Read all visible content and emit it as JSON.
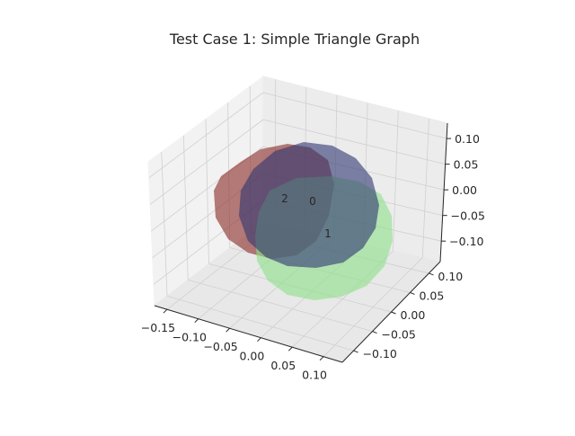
{
  "chart_data": {
    "type": "scatter",
    "title": "Test Case 1: Simple Triangle Graph",
    "projection": "3d",
    "grid": true,
    "axes": {
      "x": {
        "ticks": [
          -0.15,
          -0.1,
          -0.05,
          0.0,
          0.05,
          0.1
        ],
        "tick_labels": [
          "−0.15",
          "−0.10",
          "−0.05",
          "0.00",
          "0.05",
          "0.10"
        ]
      },
      "y": {
        "ticks": [
          -0.1,
          -0.05,
          0.0,
          0.05,
          0.1
        ],
        "tick_labels": [
          "−0.10",
          "−0.05",
          "0.00",
          "0.05",
          "0.10"
        ]
      },
      "z": {
        "ticks": [
          -0.1,
          -0.05,
          0.0,
          0.05,
          0.1
        ],
        "tick_labels": [
          "−0.10",
          "−0.05",
          "0.00",
          "0.05",
          "0.10"
        ]
      }
    },
    "nodes": [
      {
        "label": "0",
        "color": "#3a3f7a"
      },
      {
        "label": "1",
        "color": "#90e08a"
      },
      {
        "label": "2",
        "color": "#8b2f2a"
      }
    ],
    "colors": {
      "pane": "#f2f2f2",
      "grid": "#d0d0d0",
      "axis": "#262626"
    }
  }
}
